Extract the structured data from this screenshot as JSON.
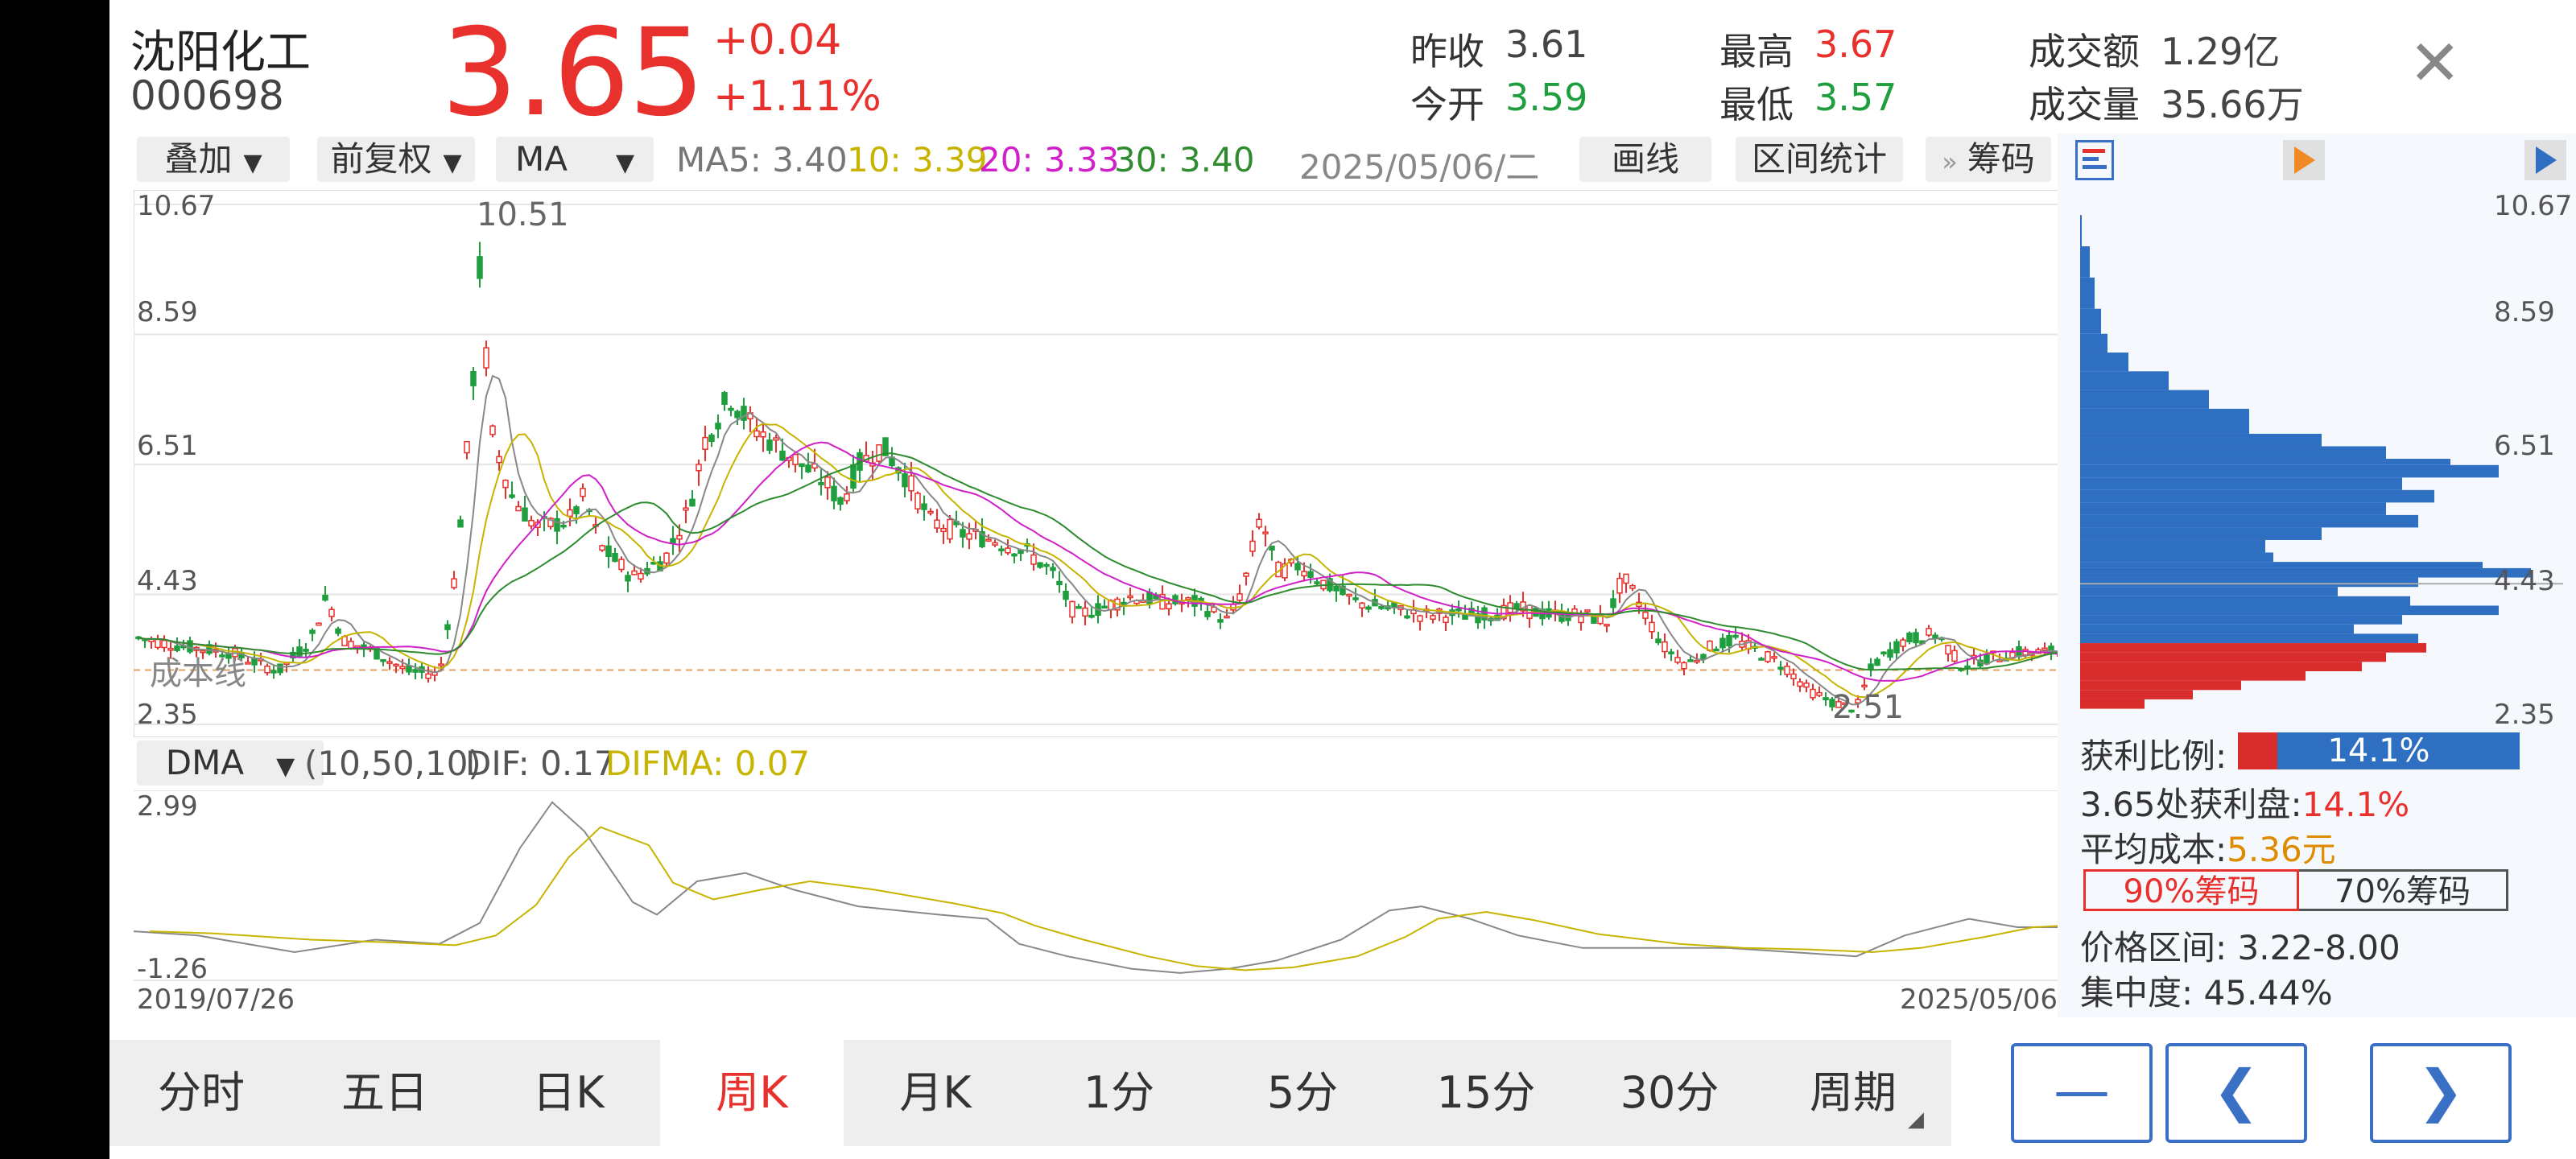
{
  "stock": {
    "name": "沈阳化工",
    "code": "000698",
    "price": "3.65",
    "change": "+0.04",
    "change_pct": "+1.11%"
  },
  "stats": {
    "prev_close_label": "昨收",
    "prev_close": "3.61",
    "open_label": "今开",
    "open": "3.59",
    "high_label": "最高",
    "high": "3.67",
    "low_label": "最低",
    "low": "3.57",
    "amount_label": "成交额",
    "amount": "1.29亿",
    "volume_label": "成交量",
    "volume": "35.66万"
  },
  "toolbar": {
    "overlay": "叠加",
    "adjust": "前复权",
    "indicator": "MA",
    "ma5": "MA5: 3.40",
    "ma10": "10: 3.39",
    "ma20": "20: 3.33",
    "ma30": "30: 3.40",
    "date": "2025/05/06/二",
    "draw": "画线",
    "range_stats": "区间统计",
    "chips": "筹码",
    "chips_prefix": "»"
  },
  "main_chart": {
    "y_labels": [
      "10.67",
      "8.59",
      "6.51",
      "4.43",
      "2.35"
    ],
    "high_marker": "10.51",
    "low_marker": "2.51",
    "cost_line_label": "成本线"
  },
  "sub_chart": {
    "indicator": "DMA",
    "params": "(10,50,10)",
    "dif": "DIF: 0.17",
    "difma": "DIFMA: 0.07",
    "y_max": "2.99",
    "y_min": "-1.26",
    "start_date": "2019/07/26",
    "end_date": "2025/05/06"
  },
  "chips_panel": {
    "y_labels": [
      "10.67",
      "8.59",
      "6.51",
      "4.43",
      "2.35"
    ],
    "profit_ratio_label": "获利比例:",
    "profit_ratio": "14.1%",
    "profit_at_label": "3.65处获利盘:",
    "profit_at": "14.1%",
    "avg_cost_label": "平均成本:",
    "avg_cost": "5.36元",
    "btn_90": "90%筹码",
    "btn_70": "70%筹码",
    "price_range": "价格区间: 3.22-8.00",
    "concentration": "集中度: 45.44%"
  },
  "colors": {
    "up": "#e8302c",
    "down": "#1f9e3e",
    "ma5": "#888888",
    "ma10": "#c8b400",
    "ma20": "#d020c8",
    "ma30": "#2e8b2e",
    "chip_blue": "#2f6fc2",
    "chip_red": "#d92c2c",
    "nav_blue": "#3a6fc6"
  },
  "tabs": [
    "分时",
    "五日",
    "日K",
    "周K",
    "月K",
    "1分",
    "5分",
    "15分",
    "30分",
    "周期"
  ],
  "active_tab": "周K"
}
